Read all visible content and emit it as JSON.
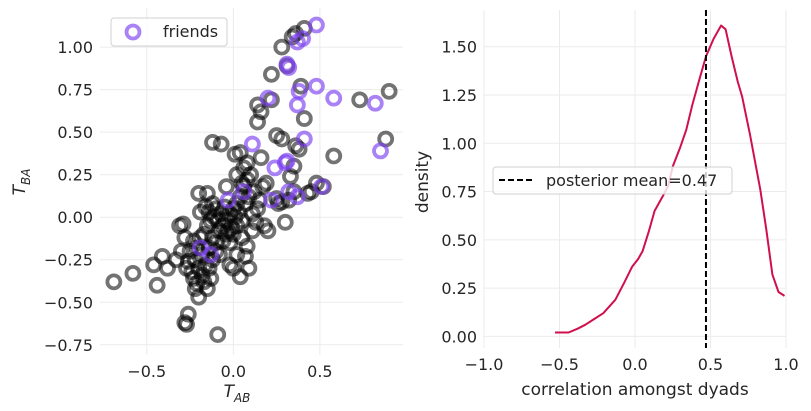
{
  "chart_data": [
    {
      "type": "scatter",
      "xlabel": "T_AB",
      "ylabel": "T_BA",
      "xlim": [
        -0.77,
        0.98
      ],
      "ylim": [
        -0.81,
        1.23
      ],
      "xticks": [
        -0.5,
        0.0,
        0.5
      ],
      "xtick_labels": [
        "−0.5",
        "0.0",
        "0.5"
      ],
      "yticks": [
        -0.75,
        -0.5,
        -0.25,
        0.0,
        0.25,
        0.5,
        0.75,
        1.0
      ],
      "ytick_labels": [
        "−0.75",
        "−0.50",
        "−0.25",
        "0.00",
        "0.25",
        "0.50",
        "0.75",
        "1.00"
      ],
      "grid": true,
      "legend": {
        "placement": "top-left",
        "entries": [
          "friends"
        ]
      },
      "colors": {
        "non_friends": "#000000",
        "friends": "#7b3ff0"
      },
      "series": [
        {
          "points": [
            [
              -0.69,
              -0.38
            ],
            [
              -0.58,
              -0.33
            ],
            [
              -0.44,
              -0.4
            ],
            [
              -0.46,
              -0.28
            ],
            [
              -0.38,
              -0.3
            ],
            [
              -0.41,
              -0.23
            ],
            [
              -0.28,
              -0.62
            ],
            [
              -0.27,
              -0.63
            ],
            [
              -0.26,
              -0.57
            ],
            [
              -0.09,
              -0.69
            ],
            [
              -0.29,
              -0.04
            ],
            [
              -0.2,
              0.14
            ],
            [
              -0.15,
              0.14
            ],
            [
              -0.14,
              0.03
            ],
            [
              -0.19,
              0.03
            ],
            [
              -0.12,
              0.44
            ],
            [
              -0.07,
              0.43
            ],
            [
              0.01,
              0.37
            ],
            [
              0.04,
              0.38
            ],
            [
              0.05,
              0.2
            ],
            [
              0.16,
              0.35
            ],
            [
              0.14,
              0.66
            ],
            [
              0.16,
              0.62
            ],
            [
              0.14,
              0.56
            ],
            [
              0.22,
              0.69
            ],
            [
              0.22,
              0.84
            ],
            [
              0.28,
              1.0
            ],
            [
              0.34,
              1.06
            ],
            [
              0.36,
              1.08
            ],
            [
              0.41,
              1.11
            ],
            [
              0.39,
              0.77
            ],
            [
              0.41,
              0.58
            ],
            [
              0.31,
              0.89
            ],
            [
              0.73,
              0.69
            ],
            [
              0.9,
              0.74
            ],
            [
              0.88,
              0.46
            ],
            [
              0.58,
              0.36
            ],
            [
              0.25,
              0.48
            ],
            [
              0.28,
              0.46
            ],
            [
              0.36,
              0.42
            ],
            [
              0.38,
              0.4
            ],
            [
              0.35,
              0.3
            ],
            [
              0.33,
              0.24
            ],
            [
              0.48,
              0.2
            ],
            [
              0.52,
              0.18
            ],
            [
              0.45,
              0.15
            ],
            [
              0.43,
              0.14
            ],
            [
              0.3,
              -0.03
            ],
            [
              0.25,
              0.11
            ],
            [
              0.28,
              0.09
            ],
            [
              0.14,
              0.05
            ],
            [
              0.13,
              -0.03
            ],
            [
              0.18,
              -0.05
            ],
            [
              0.17,
              0.18
            ],
            [
              0.08,
              -0.17
            ],
            [
              0.02,
              -0.22
            ],
            [
              0.0,
              -0.3
            ],
            [
              -0.02,
              -0.28
            ],
            [
              0.09,
              -0.3
            ],
            [
              0.07,
              -0.23
            ],
            [
              0.05,
              -0.12
            ],
            [
              -0.31,
              -0.05
            ],
            [
              -0.27,
              -0.3
            ],
            [
              -0.23,
              -0.36
            ],
            [
              -0.22,
              -0.42
            ],
            [
              -0.2,
              -0.47
            ],
            [
              -0.17,
              -0.38
            ],
            [
              -0.33,
              -0.25
            ],
            [
              -0.25,
              -0.2
            ],
            [
              -0.22,
              -0.25
            ],
            [
              -0.2,
              -0.3
            ],
            [
              -0.18,
              -0.22
            ],
            [
              -0.16,
              -0.28
            ],
            [
              -0.14,
              -0.18
            ],
            [
              -0.12,
              -0.12
            ],
            [
              -0.1,
              -0.15
            ],
            [
              -0.08,
              -0.08
            ],
            [
              -0.06,
              -0.05
            ],
            [
              -0.04,
              -0.02
            ],
            [
              -0.02,
              0.02
            ],
            [
              0.0,
              0.05
            ],
            [
              0.02,
              0.08
            ],
            [
              0.04,
              0.12
            ],
            [
              0.06,
              0.18
            ],
            [
              0.08,
              0.22
            ],
            [
              0.1,
              0.25
            ],
            [
              -0.24,
              -0.32
            ],
            [
              -0.21,
              -0.18
            ],
            [
              -0.19,
              -0.12
            ],
            [
              -0.17,
              -0.1
            ],
            [
              -0.15,
              -0.05
            ],
            [
              -0.13,
              -0.02
            ],
            [
              -0.11,
              0.0
            ],
            [
              -0.09,
              -0.02
            ],
            [
              -0.07,
              0.02
            ],
            [
              -0.05,
              0.06
            ],
            [
              -0.03,
              -0.08
            ],
            [
              -0.01,
              -0.06
            ],
            [
              0.01,
              0.0
            ],
            [
              0.03,
              0.03
            ],
            [
              0.05,
              -0.02
            ],
            [
              0.07,
              0.08
            ],
            [
              0.09,
              0.12
            ],
            [
              0.11,
              0.02
            ],
            [
              -0.26,
              -0.26
            ],
            [
              -0.23,
              -0.14
            ],
            [
              -0.18,
              -0.34
            ],
            [
              -0.14,
              -0.3
            ],
            [
              -0.12,
              -0.25
            ],
            [
              -0.1,
              -0.2
            ],
            [
              -0.08,
              -0.22
            ],
            [
              -0.06,
              -0.14
            ],
            [
              -0.04,
              -0.1
            ],
            [
              -0.02,
              -0.15
            ],
            [
              0.0,
              -0.1
            ],
            [
              0.02,
              -0.05
            ],
            [
              0.12,
              0.15
            ],
            [
              0.15,
              0.1
            ],
            [
              0.19,
              0.2
            ],
            [
              0.02,
              0.25
            ],
            [
              -0.04,
              0.18
            ],
            [
              -0.16,
              0.06
            ],
            [
              -0.12,
              0.08
            ],
            [
              -0.1,
              0.05
            ],
            [
              -0.28,
              -0.12
            ],
            [
              -0.3,
              -0.2
            ],
            [
              -0.21,
              -0.39
            ],
            [
              -0.15,
              -0.42
            ],
            [
              -0.13,
              -0.36
            ],
            [
              0.04,
              -0.35
            ],
            [
              0.11,
              -0.08
            ],
            [
              0.2,
              -0.08
            ],
            [
              0.26,
              0.08
            ],
            [
              0.35,
              0.15
            ],
            [
              0.32,
              0.1
            ],
            [
              0.06,
              0.29
            ],
            [
              0.08,
              0.32
            ]
          ],
          "color": "#000000"
        },
        {
          "name": "friends",
          "points": [
            [
              0.48,
              1.13
            ],
            [
              0.37,
              1.03
            ],
            [
              0.4,
              1.05
            ],
            [
              0.32,
              0.88
            ],
            [
              0.31,
              0.9
            ],
            [
              0.48,
              0.77
            ],
            [
              0.58,
              0.7
            ],
            [
              0.38,
              0.74
            ],
            [
              0.37,
              0.66
            ],
            [
              0.2,
              0.7
            ],
            [
              0.82,
              0.67
            ],
            [
              0.41,
              0.46
            ],
            [
              0.11,
              0.43
            ],
            [
              0.85,
              0.39
            ],
            [
              0.31,
              0.33
            ],
            [
              0.3,
              0.32
            ],
            [
              0.24,
              0.29
            ],
            [
              0.06,
              0.15
            ],
            [
              0.32,
              0.15
            ],
            [
              0.37,
              0.12
            ],
            [
              0.22,
              0.1
            ],
            [
              -0.03,
              0.1
            ],
            [
              0.51,
              0.18
            ],
            [
              -0.19,
              -0.18
            ],
            [
              -0.13,
              -0.22
            ]
          ],
          "color": "#7b3ff0"
        }
      ]
    },
    {
      "type": "line",
      "xlabel": "correlation amongst dyads",
      "ylabel": "density",
      "xlim": [
        -1.0,
        1.0
      ],
      "ylim": [
        -0.06,
        1.69
      ],
      "xticks": [
        -1.0,
        -0.5,
        0.0,
        0.5,
        1.0
      ],
      "xtick_labels": [
        "−1.0",
        "−0.5",
        "0.0",
        "0.5",
        "1.0"
      ],
      "yticks": [
        0.0,
        0.25,
        0.5,
        0.75,
        1.0,
        1.25,
        1.5
      ],
      "ytick_labels": [
        "0.00",
        "0.25",
        "0.50",
        "0.75",
        "1.00",
        "1.25",
        "1.50"
      ],
      "grid": true,
      "legend": {
        "placement": "center-left",
        "entries": [
          "posterior mean=0.47"
        ]
      },
      "colors": {
        "density": "#d0104c",
        "mean_line": "#000000"
      },
      "series": [
        {
          "x": [
            -0.53,
            -0.44,
            -0.38,
            -0.33,
            -0.27,
            -0.21,
            -0.13,
            -0.07,
            -0.02,
            0.02,
            0.05,
            0.09,
            0.13,
            0.18,
            0.22,
            0.25,
            0.3,
            0.34,
            0.38,
            0.43,
            0.47,
            0.52,
            0.57,
            0.6,
            0.64,
            0.68,
            0.71,
            0.76,
            0.83,
            0.87,
            0.91,
            0.95,
            0.99
          ],
          "y": [
            0.02,
            0.02,
            0.04,
            0.06,
            0.09,
            0.12,
            0.19,
            0.28,
            0.36,
            0.4,
            0.44,
            0.54,
            0.65,
            0.72,
            0.78,
            0.88,
            0.98,
            1.07,
            1.2,
            1.34,
            1.45,
            1.54,
            1.61,
            1.59,
            1.45,
            1.32,
            1.24,
            1.05,
            0.76,
            0.55,
            0.32,
            0.23,
            0.21
          ],
          "color": "#d0104c"
        }
      ],
      "annotations": [
        {
          "type": "vline",
          "x": 0.47,
          "style": "dashed",
          "label": "posterior mean=0.47"
        }
      ]
    }
  ]
}
